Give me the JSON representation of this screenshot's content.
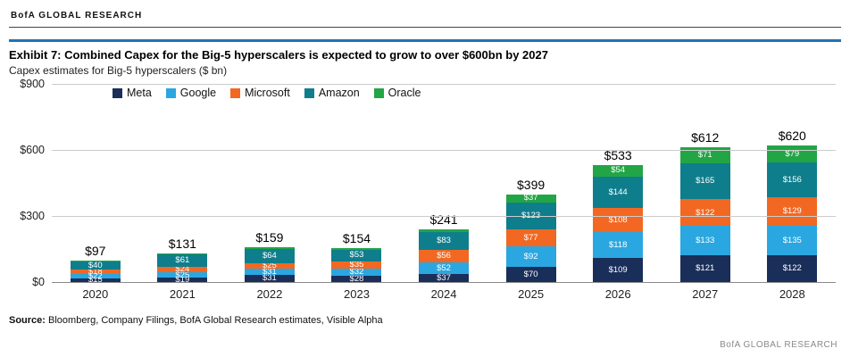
{
  "header": {
    "brand": "BofA GLOBAL RESEARCH"
  },
  "title": "Exhibit 7: Combined Capex for the Big-5 hyperscalers is expected to grow to over $600bn by 2027",
  "subtitle": "Capex estimates for Big-5 hyperscalers ($ bn)",
  "source": {
    "label": "Source:",
    "text": " Bloomberg, Company Filings, BofA Global Research estimates, Visible Alpha"
  },
  "footer_brand": "BofA GLOBAL RESEARCH",
  "chart_data": {
    "type": "bar",
    "stacked": true,
    "title": "Combined Capex for the Big-5 hyperscalers ($ bn)",
    "categories": [
      "2020",
      "2021",
      "2022",
      "2023",
      "2024",
      "2025",
      "2026",
      "2027",
      "2028"
    ],
    "series": [
      {
        "name": "Meta",
        "color": "#1a2e5a",
        "values": [
          15,
          19,
          31,
          28,
          37,
          70,
          109,
          121,
          122
        ]
      },
      {
        "name": "Google",
        "color": "#2aa7e0",
        "values": [
          22,
          25,
          31,
          32,
          52,
          92,
          118,
          133,
          135
        ]
      },
      {
        "name": "Microsoft",
        "color": "#f26822",
        "values": [
          18,
          24,
          25,
          35,
          56,
          77,
          108,
          122,
          129
        ]
      },
      {
        "name": "Amazon",
        "color": "#0f7e8c",
        "values": [
          40,
          61,
          64,
          53,
          83,
          123,
          144,
          165,
          156
        ]
      },
      {
        "name": "Oracle",
        "color": "#22a545",
        "values": [
          2,
          2,
          8,
          6,
          13,
          37,
          54,
          71,
          79
        ]
      }
    ],
    "totals": [
      "$97",
      "$131",
      "$159",
      "$154",
      "$241",
      "$399",
      "$533",
      "$612",
      "$620"
    ],
    "ylim": [
      0,
      900
    ],
    "ytick_values": [
      0,
      300,
      600,
      900
    ],
    "yticks": [
      "$0",
      "$300",
      "$600",
      "$900"
    ],
    "grid": true,
    "legend_position": "top",
    "value_prefix": "$",
    "label_min_value": 14
  }
}
